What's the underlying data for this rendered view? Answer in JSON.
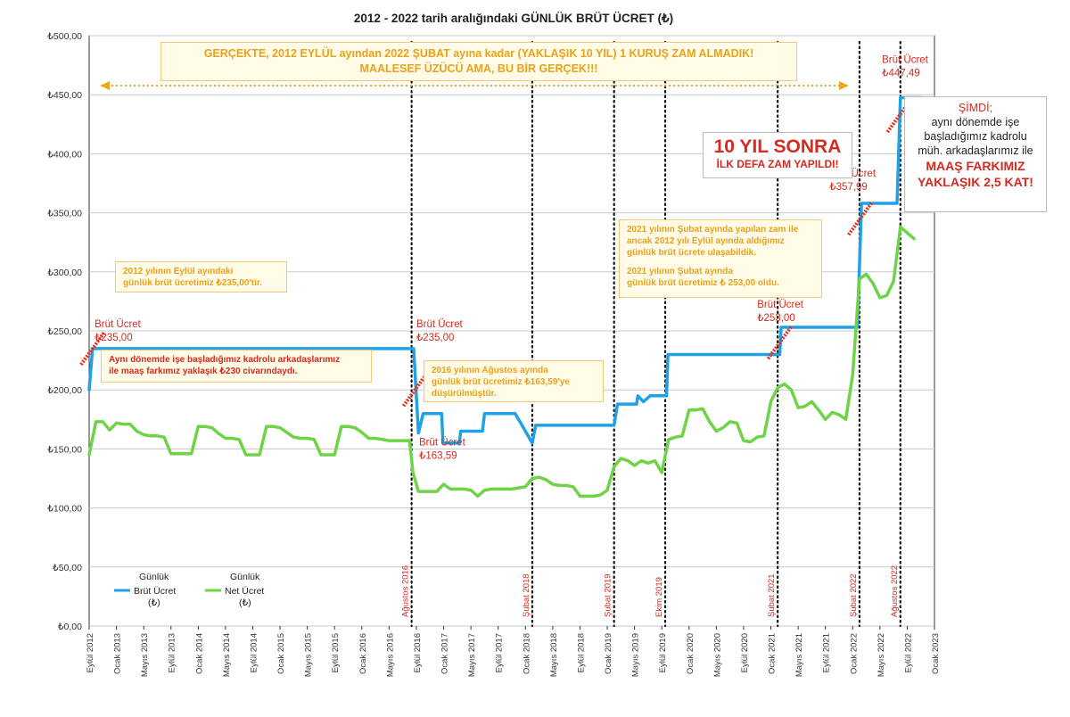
{
  "chart_data": {
    "type": "line",
    "title": "2012 - 2022 tarih aralığındaki GÜNLÜK BRÜT ÜCRET (₺)",
    "xlabel": "",
    "ylabel": "",
    "ylim": [
      0,
      500
    ],
    "y_ticks": [
      0,
      50,
      100,
      150,
      200,
      250,
      300,
      350,
      400,
      450,
      500
    ],
    "y_tick_labels": [
      "₺0,00",
      "₺50,00",
      "₺100,00",
      "₺150,00",
      "₺200,00",
      "₺250,00",
      "₺300,00",
      "₺350,00",
      "₺400,00",
      "₺450,00",
      "₺500,00"
    ],
    "grid": true,
    "legend_position": "bottom-left",
    "x_ticks": [
      {
        "label": "Eylül 2012",
        "t": 0
      },
      {
        "label": "Ocak 2013",
        "t": 4
      },
      {
        "label": "Mayıs 2013",
        "t": 8
      },
      {
        "label": "Eylül 2013",
        "t": 12
      },
      {
        "label": "Ocak 2014",
        "t": 16
      },
      {
        "label": "Mayıs 2014",
        "t": 20
      },
      {
        "label": "Eylül 2014",
        "t": 24
      },
      {
        "label": "Ocak 2015",
        "t": 28
      },
      {
        "label": "Mayıs 2015",
        "t": 32
      },
      {
        "label": "Eylül 2015",
        "t": 36
      },
      {
        "label": "Ocak 2016",
        "t": 40
      },
      {
        "label": "Mayıs 2016",
        "t": 44
      },
      {
        "label": "Eylül 2016",
        "t": 48
      },
      {
        "label": "Ocak 2017",
        "t": 52
      },
      {
        "label": "Mayıs 2017",
        "t": 56
      },
      {
        "label": "Eylül 2017",
        "t": 60
      },
      {
        "label": "Ocak 2018",
        "t": 64
      },
      {
        "label": "Mayıs 2018",
        "t": 68
      },
      {
        "label": "Eylül 2018",
        "t": 72
      },
      {
        "label": "Ocak 2019",
        "t": 76
      },
      {
        "label": "Mayıs 2019",
        "t": 80
      },
      {
        "label": "Eylül 2019",
        "t": 84
      },
      {
        "label": "Ocak 2020",
        "t": 88
      },
      {
        "label": "Mayıs 2020",
        "t": 92
      },
      {
        "label": "Eylül 2020",
        "t": 96
      },
      {
        "label": "Ocak 2021",
        "t": 100
      },
      {
        "label": "Mayıs 2021",
        "t": 104
      },
      {
        "label": "Eylül 2021",
        "t": 108
      },
      {
        "label": "Ocak 2022",
        "t": 112
      },
      {
        "label": "Mayıs 2022",
        "t": 116
      },
      {
        "label": "Eylül 2022",
        "t": 120
      },
      {
        "label": "Ocak 2023",
        "t": 124
      }
    ],
    "event_lines": [
      {
        "label": "Ağustos 2016",
        "t": 47.3
      },
      {
        "label": "Şubat 2018",
        "t": 65
      },
      {
        "label": "Şubat 2019",
        "t": 77
      },
      {
        "label": "Ekim 2019",
        "t": 84.5
      },
      {
        "label": "Şubat 2021",
        "t": 101
      },
      {
        "label": "Şubat 2022",
        "t": 113
      },
      {
        "label": "Ağustos 2022",
        "t": 119
      }
    ],
    "series": [
      {
        "name": "Brüt Ücret (₺)",
        "legend_lines": [
          "Günlük",
          "Brüt Ücret",
          "(₺)"
        ],
        "color": "#1ea1e6",
        "x": [
          0,
          0.5,
          47.6,
          48.3,
          49,
          51.7,
          51.9,
          54.3,
          54.5,
          57.7,
          58,
          62.3,
          62.5,
          65,
          65.5,
          69.3,
          69.6,
          73.8,
          74,
          77,
          77.5,
          79.3,
          80.3,
          80.5,
          81.3,
          82.3,
          83,
          84,
          84.7,
          84.9,
          89.4,
          89.6,
          97.3,
          97.6,
          101.3,
          101.5,
          112.7,
          113.3,
          118.5,
          119,
          122
        ],
        "values": [
          200,
          235,
          235,
          163.59,
          180,
          180,
          155,
          155,
          165,
          165,
          180,
          180,
          180,
          155,
          170,
          170,
          170,
          170,
          170,
          170,
          188,
          188,
          188,
          195,
          190,
          195,
          195,
          195,
          195,
          230,
          230,
          230,
          230,
          230,
          230,
          253,
          253,
          357.99,
          357.99,
          447.49,
          447.49
        ]
      },
      {
        "name": "Net Ücret (₺)",
        "legend_lines": [
          "Günlük",
          "Net Ücret",
          "(₺)"
        ],
        "color": "#6fd348",
        "x": [
          0,
          1,
          2,
          3,
          4,
          5,
          6,
          7,
          8,
          9,
          10,
          11,
          12,
          13,
          14,
          15,
          16,
          17,
          18,
          19,
          20,
          21,
          22,
          23,
          24,
          25,
          26,
          27,
          28,
          29,
          30,
          31,
          32,
          33,
          34,
          35,
          36,
          37,
          38,
          39,
          40,
          41,
          42,
          43,
          44,
          45,
          46,
          47,
          47.5,
          48.3,
          49,
          50,
          51,
          52,
          53,
          54,
          55,
          56,
          57,
          58,
          59,
          60,
          61,
          62,
          63,
          64,
          65,
          66,
          67,
          68,
          69,
          70,
          71,
          72,
          73,
          74,
          75,
          76,
          77,
          78,
          79,
          80,
          81,
          82,
          83,
          84,
          85,
          86,
          87,
          88,
          89,
          90,
          91,
          92,
          93,
          94,
          95,
          96,
          97,
          98,
          99,
          100,
          101,
          102,
          103,
          104,
          105,
          106,
          107,
          108,
          109,
          110,
          111,
          112,
          113,
          114,
          115,
          116,
          117,
          118,
          119,
          120,
          121
        ],
        "values": [
          145,
          173,
          173,
          166,
          172,
          171,
          171,
          165,
          162,
          161,
          161,
          160,
          146,
          146,
          146,
          146,
          169,
          169,
          168,
          163,
          159,
          159,
          158,
          145,
          145,
          145,
          169,
          169,
          168,
          164,
          160,
          159,
          159,
          158,
          145,
          145,
          145,
          169,
          169,
          168,
          164,
          159,
          159,
          158,
          157,
          157,
          157,
          157,
          130,
          114,
          114,
          114,
          114,
          120,
          116,
          116,
          116,
          115,
          110,
          115,
          116,
          116,
          116,
          116,
          117,
          118,
          125,
          126,
          124,
          120,
          119,
          119,
          118,
          110,
          110,
          110,
          111,
          115,
          135,
          142,
          140,
          136,
          140,
          138,
          140,
          130,
          158,
          160,
          161,
          183,
          183,
          184,
          173,
          165,
          168,
          173,
          172,
          157,
          156,
          160,
          161,
          190,
          202,
          205,
          200,
          185,
          186,
          190,
          183,
          175,
          181,
          179,
          175,
          213,
          294,
          298,
          290,
          278,
          280,
          292,
          338,
          333,
          328
        ]
      }
    ],
    "annotations": [
      {
        "text": "Brüt Ücret",
        "t": 0.8,
        "v": 235,
        "dy": -24
      },
      {
        "text": "₺235,00",
        "t": 0.8,
        "v": 235,
        "dy": -9
      },
      {
        "text": "Brüt Ücret",
        "t": 48,
        "v": 235,
        "dy": -24
      },
      {
        "text": "₺235,00",
        "t": 48,
        "v": 235,
        "dy": -9
      },
      {
        "text": "Brüt Ücret",
        "t": 48.4,
        "v": 163.59,
        "dy": 14
      },
      {
        "text": "₺163,59",
        "t": 48.4,
        "v": 163.59,
        "dy": 29
      },
      {
        "text": "Brüt Ücret",
        "t": 98,
        "v": 253,
        "dy": -22
      },
      {
        "text": "₺253,00",
        "t": 98,
        "v": 253,
        "dy": -7
      },
      {
        "text": "Brüt Ücret",
        "t": 108.6,
        "v": 357.99,
        "dy": -30
      },
      {
        "text": "₺357,99",
        "t": 108.6,
        "v": 357.99,
        "dy": -15
      },
      {
        "text": "Brüt Ücret",
        "t": 116.3,
        "v": 447.49,
        "dy": -39
      },
      {
        "text": "₺447,49",
        "t": 116.3,
        "v": 447.49,
        "dy": -24
      }
    ]
  },
  "callouts": {
    "top": [
      "GERÇEKTE, 2012 EYLÜL ayından 2022 ŞUBAT ayına kadar (YAKLAŞIK 10 YIL) 1 KURUŞ ZAM ALMADIK!",
      "MAALESEF ÜZÜCÜ AMA, BU BİR GERÇEK!!!"
    ],
    "note_2012": [
      "2012 yılının Eylül ayındaki",
      "günlük brüt ücretimiz ₺235,00'tir."
    ],
    "note_fark": [
      "Aynı dönemde işe başladığımız kadrolu arkadaşlarımız",
      "ile maaş farkımız yaklaşık ₺230 civarındaydı."
    ],
    "note_2016": [
      "2016 yılının Ağustos ayında",
      "günlük brüt ücretimiz ₺163,59'ye",
      "düşürülmüştür."
    ],
    "note_2021_a": [
      "2021 yılının Şubat ayında yapılan zam ile",
      "ancak 2012 yılı Eylül ayında aldığımız",
      "günlük brüt ücrete ulaşabildik."
    ],
    "note_2021_b": [
      "2021 yılının Şubat ayında",
      "günlük brüt ücretimiz ₺ 253,00 oldu."
    ],
    "big_line1": "10 YIL SONRA",
    "big_line2": "İLK DEFA ZAM YAPILDI!",
    "simdi": {
      "line1": "ŞİMDİ;",
      "line2": "aynı dönemde işe",
      "line3": "başladığımız kadrolu",
      "line4": "müh. arkadaşlarımız ile",
      "line5": "MAAŞ FARKIMIZ",
      "line6": "YAKLAŞIK 2,5 KAT!"
    }
  }
}
